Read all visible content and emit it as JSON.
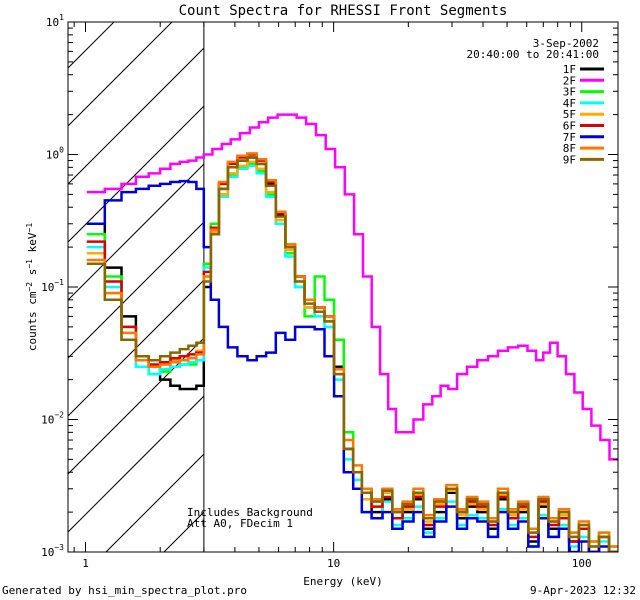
{
  "chart_data": {
    "type": "line",
    "title": "Count Spectra for RHESSI Front Segments",
    "xlabel": "Energy (keV)",
    "ylabel": "counts cm^-2 s^-1 keV^-1",
    "ylabel_parts": {
      "base": "counts cm",
      "exp1": "−2",
      "mid": " s",
      "exp2": "−1",
      "tail": " keV",
      "exp3": "−1"
    },
    "x_scale": "log",
    "y_scale": "log",
    "xlim": [
      0.85,
      140
    ],
    "ylim": [
      0.001,
      10
    ],
    "x_ticks": [
      {
        "value": 1,
        "label": "1"
      },
      {
        "value": 10,
        "label": "10"
      },
      {
        "value": 100,
        "label": "100"
      }
    ],
    "y_ticks": [
      {
        "value": 0.001,
        "base": "10",
        "exp": "−3"
      },
      {
        "value": 0.01,
        "base": "10",
        "exp": "−2"
      },
      {
        "value": 0.1,
        "base": "10",
        "exp": "−1"
      },
      {
        "value": 1,
        "base": "10",
        "exp": "0"
      },
      {
        "value": 10,
        "base": "10",
        "exp": "1"
      }
    ],
    "hatched_region_keV": [
      0.85,
      3.0
    ],
    "annotations": {
      "date": "3-Sep-2002",
      "time_range": "20:40:00 to 20:41:00",
      "background_note": "Includes Background",
      "attenuator_note": "Att A0, FDecim 1"
    },
    "legend_position": "top-right",
    "series": [
      {
        "name": "1F",
        "color": "#000000",
        "x": [
          1.1,
          1.3,
          1.5,
          1.7,
          1.9,
          2.1,
          2.3,
          2.5,
          2.7,
          2.9,
          3.1,
          3.3,
          3.6,
          3.9,
          4.3,
          4.7,
          5.1,
          5.6,
          6.1,
          6.7,
          7.3,
          8.0,
          8.8,
          9.6,
          10.5,
          11.5,
          12.5,
          13.5,
          15,
          16.5,
          18,
          20,
          22,
          24,
          27,
          30,
          33,
          36,
          40,
          44,
          48,
          53,
          58,
          64,
          70,
          77,
          85,
          93,
          102,
          112,
          123,
          135
        ],
        "y": [
          0.3,
          0.14,
          0.06,
          0.03,
          0.025,
          0.02,
          0.018,
          0.017,
          0.017,
          0.018,
          0.1,
          0.25,
          0.55,
          0.8,
          0.9,
          0.95,
          0.85,
          0.6,
          0.35,
          0.2,
          0.12,
          0.08,
          0.07,
          0.06,
          0.025,
          0.006,
          0.004,
          0.003,
          0.002,
          0.0025,
          0.0018,
          0.002,
          0.0025,
          0.0015,
          0.002,
          0.0028,
          0.0018,
          0.0022,
          0.002,
          0.0015,
          0.0025,
          0.0018,
          0.002,
          0.0012,
          0.0022,
          0.0015,
          0.0018,
          0.0012,
          0.0015,
          0.001,
          0.0013,
          0.001
        ]
      },
      {
        "name": "2F",
        "color": "#ff00ff",
        "x": [
          1.1,
          1.3,
          1.5,
          1.7,
          1.9,
          2.1,
          2.3,
          2.5,
          2.7,
          2.9,
          3.1,
          3.4,
          3.7,
          4.0,
          4.4,
          4.8,
          5.2,
          5.7,
          6.2,
          6.8,
          7.4,
          8.1,
          8.9,
          9.7,
          10.6,
          11.6,
          12.6,
          13.7,
          14.8,
          16,
          17.2,
          18.5,
          20,
          22,
          24,
          26,
          28,
          30,
          33,
          36,
          40,
          44,
          48,
          53,
          58,
          63,
          68,
          72,
          77,
          83,
          90,
          97,
          105,
          114,
          124,
          135
        ],
        "y": [
          0.52,
          0.55,
          0.6,
          0.68,
          0.72,
          0.78,
          0.85,
          0.88,
          0.9,
          0.95,
          1.0,
          1.1,
          1.2,
          1.3,
          1.45,
          1.6,
          1.75,
          1.9,
          2.0,
          2.0,
          1.9,
          1.7,
          1.4,
          1.1,
          0.8,
          0.5,
          0.25,
          0.12,
          0.05,
          0.022,
          0.012,
          0.008,
          0.008,
          0.01,
          0.013,
          0.015,
          0.018,
          0.017,
          0.022,
          0.025,
          0.028,
          0.03,
          0.033,
          0.035,
          0.036,
          0.033,
          0.028,
          0.032,
          0.038,
          0.03,
          0.022,
          0.016,
          0.012,
          0.009,
          0.007,
          0.005
        ]
      },
      {
        "name": "3F",
        "color": "#00ff00",
        "x": [
          1.1,
          1.3,
          1.5,
          1.7,
          1.9,
          2.1,
          2.3,
          2.5,
          2.7,
          2.9,
          3.1,
          3.3,
          3.6,
          3.9,
          4.3,
          4.7,
          5.1,
          5.6,
          6.1,
          6.7,
          7.3,
          8.0,
          8.8,
          9.6,
          10.5,
          11.5,
          12.5,
          13.5,
          15,
          16.5,
          18,
          20,
          22,
          24,
          27,
          30,
          33,
          36,
          40,
          44,
          48,
          53,
          58,
          64,
          70,
          77,
          85,
          93,
          102,
          112,
          123,
          135
        ],
        "y": [
          0.25,
          0.12,
          0.05,
          0.028,
          0.022,
          0.023,
          0.025,
          0.026,
          0.026,
          0.028,
          0.15,
          0.3,
          0.5,
          0.7,
          0.8,
          0.85,
          0.75,
          0.5,
          0.3,
          0.18,
          0.1,
          0.06,
          0.12,
          0.08,
          0.04,
          0.008,
          0.004,
          0.003,
          0.0025,
          0.003,
          0.002,
          0.0022,
          0.0028,
          0.0018,
          0.0025,
          0.003,
          0.002,
          0.0025,
          0.0022,
          0.0018,
          0.0028,
          0.002,
          0.0022,
          0.0015,
          0.0025,
          0.0018,
          0.002,
          0.0014,
          0.0016,
          0.0012,
          0.0014,
          0.0011
        ]
      },
      {
        "name": "4F",
        "color": "#00ffff",
        "x": [
          1.1,
          1.3,
          1.5,
          1.7,
          1.9,
          2.1,
          2.3,
          2.5,
          2.7,
          2.9,
          3.1,
          3.3,
          3.6,
          3.9,
          4.3,
          4.7,
          5.1,
          5.6,
          6.1,
          6.7,
          7.3,
          8.0,
          8.8,
          9.6,
          10.5,
          11.5,
          12.5,
          13.5,
          15,
          16.5,
          18,
          20,
          22,
          24,
          27,
          30,
          33,
          36,
          40,
          44,
          48,
          53,
          58,
          64,
          70,
          77,
          85,
          93,
          102,
          112,
          123,
          135
        ],
        "y": [
          0.2,
          0.1,
          0.045,
          0.025,
          0.022,
          0.024,
          0.025,
          0.026,
          0.027,
          0.028,
          0.14,
          0.28,
          0.48,
          0.68,
          0.78,
          0.82,
          0.72,
          0.48,
          0.3,
          0.17,
          0.1,
          0.07,
          0.06,
          0.05,
          0.02,
          0.005,
          0.0035,
          0.002,
          0.0018,
          0.0024,
          0.0016,
          0.0018,
          0.0022,
          0.0014,
          0.0018,
          0.0024,
          0.0016,
          0.0019,
          0.0018,
          0.0013,
          0.0021,
          0.0016,
          0.0018,
          0.0011,
          0.0019,
          0.0013,
          0.0016,
          0.0011,
          0.0013,
          0.001,
          0.0012,
          0.001
        ]
      },
      {
        "name": "5F",
        "color": "#ffaa00",
        "x": [
          1.1,
          1.3,
          1.5,
          1.7,
          1.9,
          2.1,
          2.3,
          2.5,
          2.7,
          2.9,
          3.1,
          3.3,
          3.6,
          3.9,
          4.3,
          4.7,
          5.1,
          5.6,
          6.1,
          6.7,
          7.3,
          8.0,
          8.8,
          9.6,
          10.5,
          11.5,
          12.5,
          13.5,
          15,
          16.5,
          18,
          20,
          22,
          24,
          27,
          30,
          33,
          36,
          40,
          44,
          48,
          53,
          58,
          64,
          70,
          77,
          85,
          93,
          102,
          112,
          123,
          135
        ],
        "y": [
          0.18,
          0.09,
          0.04,
          0.028,
          0.025,
          0.026,
          0.028,
          0.03,
          0.031,
          0.033,
          0.12,
          0.26,
          0.5,
          0.72,
          0.82,
          0.88,
          0.78,
          0.52,
          0.32,
          0.19,
          0.11,
          0.07,
          0.065,
          0.055,
          0.022,
          0.006,
          0.004,
          0.0025,
          0.0022,
          0.0028,
          0.002,
          0.0021,
          0.0027,
          0.0017,
          0.0023,
          0.0029,
          0.0019,
          0.0023,
          0.0021,
          0.0017,
          0.0027,
          0.0019,
          0.0021,
          0.0014,
          0.0023,
          0.0017,
          0.0019,
          0.0013,
          0.0015,
          0.0011,
          0.0013,
          0.001
        ]
      },
      {
        "name": "6F",
        "color": "#dd0000",
        "x": [
          1.1,
          1.3,
          1.5,
          1.7,
          1.9,
          2.1,
          2.3,
          2.5,
          2.7,
          2.9,
          3.1,
          3.3,
          3.6,
          3.9,
          4.3,
          4.7,
          5.1,
          5.6,
          6.1,
          6.7,
          7.3,
          8.0,
          8.8,
          9.6,
          10.5,
          11.5,
          12.5,
          13.5,
          15,
          16.5,
          18,
          20,
          22,
          24,
          27,
          30,
          33,
          36,
          40,
          44,
          48,
          53,
          58,
          64,
          70,
          77,
          85,
          93,
          102,
          112,
          123,
          135
        ],
        "y": [
          0.22,
          0.11,
          0.05,
          0.03,
          0.026,
          0.027,
          0.029,
          0.03,
          0.031,
          0.032,
          0.13,
          0.28,
          0.6,
          0.85,
          0.95,
          1.0,
          0.9,
          0.62,
          0.36,
          0.21,
          0.12,
          0.08,
          0.07,
          0.06,
          0.024,
          0.006,
          0.004,
          0.0028,
          0.0022,
          0.0026,
          0.0018,
          0.0022,
          0.0026,
          0.0016,
          0.0022,
          0.003,
          0.002,
          0.0024,
          0.0022,
          0.0016,
          0.0026,
          0.0018,
          0.0022,
          0.0013,
          0.0024,
          0.0016,
          0.0018,
          0.0012,
          0.0015,
          0.001,
          0.0013,
          0.001
        ]
      },
      {
        "name": "7F",
        "color": "#0000dd",
        "x": [
          1.1,
          1.3,
          1.5,
          1.7,
          1.9,
          2.1,
          2.3,
          2.5,
          2.7,
          2.9,
          3.1,
          3.3,
          3.6,
          3.9,
          4.3,
          4.7,
          5.1,
          5.6,
          6.1,
          6.7,
          7.3,
          8.0,
          8.8,
          9.6,
          10.5,
          11.5,
          12.5,
          13.5,
          15,
          16.5,
          18,
          20,
          22,
          24,
          27,
          30,
          33,
          36,
          40,
          44,
          48,
          53,
          58,
          64,
          70,
          77,
          85,
          93,
          102,
          112,
          123,
          135
        ],
        "y": [
          0.3,
          0.45,
          0.52,
          0.55,
          0.58,
          0.6,
          0.62,
          0.63,
          0.62,
          0.55,
          0.2,
          0.08,
          0.05,
          0.035,
          0.03,
          0.028,
          0.03,
          0.032,
          0.045,
          0.04,
          0.05,
          0.05,
          0.048,
          0.03,
          0.015,
          0.004,
          0.003,
          0.002,
          0.0018,
          0.002,
          0.0015,
          0.0017,
          0.002,
          0.0013,
          0.0017,
          0.0022,
          0.0015,
          0.0018,
          0.0017,
          0.0013,
          0.002,
          0.0015,
          0.0017,
          0.0011,
          0.0018,
          0.0013,
          0.0015,
          0.001,
          0.0012,
          0.001,
          0.0011,
          0.001
        ]
      },
      {
        "name": "8F",
        "color": "#ff7700",
        "x": [
          1.1,
          1.3,
          1.5,
          1.7,
          1.9,
          2.1,
          2.3,
          2.5,
          2.7,
          2.9,
          3.1,
          3.3,
          3.6,
          3.9,
          4.3,
          4.7,
          5.1,
          5.6,
          6.1,
          6.7,
          7.3,
          8.0,
          8.8,
          9.6,
          10.5,
          11.5,
          12.5,
          13.5,
          15,
          16.5,
          18,
          20,
          22,
          24,
          27,
          30,
          33,
          36,
          40,
          44,
          48,
          53,
          58,
          64,
          70,
          77,
          85,
          93,
          102,
          112,
          123,
          135
        ],
        "y": [
          0.16,
          0.09,
          0.045,
          0.028,
          0.025,
          0.026,
          0.027,
          0.028,
          0.029,
          0.031,
          0.12,
          0.27,
          0.62,
          0.88,
          0.98,
          1.02,
          0.92,
          0.64,
          0.37,
          0.21,
          0.12,
          0.08,
          0.07,
          0.06,
          0.024,
          0.007,
          0.0045,
          0.003,
          0.0025,
          0.003,
          0.0021,
          0.0024,
          0.003,
          0.0019,
          0.0025,
          0.0032,
          0.0021,
          0.0026,
          0.0024,
          0.0018,
          0.003,
          0.0021,
          0.0024,
          0.0015,
          0.0026,
          0.0018,
          0.0021,
          0.0014,
          0.0017,
          0.0012,
          0.0014,
          0.0011
        ]
      },
      {
        "name": "9F",
        "color": "#886600",
        "x": [
          1.1,
          1.3,
          1.5,
          1.7,
          1.9,
          2.1,
          2.3,
          2.5,
          2.7,
          2.9,
          3.1,
          3.3,
          3.6,
          3.9,
          4.3,
          4.7,
          5.1,
          5.6,
          6.1,
          6.7,
          7.3,
          8.0,
          8.8,
          9.6,
          10.5,
          11.5,
          12.5,
          13.5,
          15,
          16.5,
          18,
          20,
          22,
          24,
          27,
          30,
          33,
          36,
          40,
          44,
          48,
          53,
          58,
          64,
          70,
          77,
          85,
          93,
          102,
          112,
          123,
          135
        ],
        "y": [
          0.15,
          0.08,
          0.04,
          0.03,
          0.028,
          0.03,
          0.032,
          0.034,
          0.036,
          0.038,
          0.11,
          0.25,
          0.55,
          0.8,
          0.9,
          0.95,
          0.85,
          0.58,
          0.34,
          0.2,
          0.11,
          0.075,
          0.065,
          0.055,
          0.022,
          0.006,
          0.004,
          0.0028,
          0.0024,
          0.0029,
          0.002,
          0.0023,
          0.0028,
          0.0018,
          0.0024,
          0.003,
          0.002,
          0.0025,
          0.0023,
          0.0017,
          0.0028,
          0.002,
          0.0023,
          0.0014,
          0.0025,
          0.0017,
          0.002,
          0.0013,
          0.0016,
          0.0011,
          0.0013,
          0.001
        ]
      }
    ]
  },
  "footer": {
    "left": "Generated by hsi_min_spectra_plot.pro",
    "right": "9-Apr-2023 12:32"
  }
}
